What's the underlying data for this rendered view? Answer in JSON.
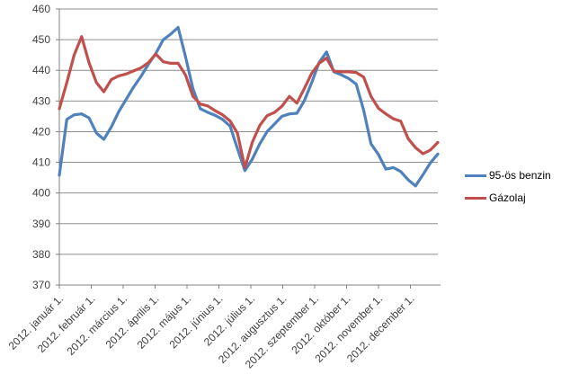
{
  "chart_data": {
    "type": "line",
    "title": "",
    "xlabel": "",
    "ylabel": "",
    "ylim": [
      370,
      460
    ],
    "y_ticks": [
      460,
      450,
      440,
      430,
      420,
      410,
      400,
      390,
      380,
      370
    ],
    "grid": true,
    "legend_position": "right",
    "x_tick_labels": [
      "2012. január 1.",
      "2012. február 1.",
      "2012. március 1.",
      "2012. április 1.",
      "2012. május 1.",
      "2012. június 1.",
      "2012. július 1.",
      "2012. augusztus 1.",
      "2012. szeptember 1.",
      "2012. október 1.",
      "2012. november 1.",
      "2012. december 1."
    ],
    "x_resolution": "weekly, 2012. január 1. – 2012. december 31.",
    "series": [
      {
        "name": "95-ös benzin",
        "color": "#4F81BD",
        "values": [
          405.8,
          424,
          425.5,
          425.8,
          424.5,
          419.5,
          417.5,
          421.5,
          426.5,
          430.5,
          434.5,
          438,
          442,
          445.5,
          450,
          451.8,
          454,
          444.5,
          434,
          427.5,
          426.3,
          425.3,
          424,
          421.8,
          414.5,
          407.3,
          411,
          416,
          420,
          422.5,
          425,
          425.8,
          426,
          430,
          436,
          442.5,
          446,
          439.5,
          438.5,
          437.3,
          435.5,
          427,
          416,
          412.5,
          407.8,
          408.3,
          407,
          404.3,
          402.3,
          406,
          409.8,
          412.7
        ]
      },
      {
        "name": "Gázolaj",
        "color": "#C0504D",
        "values": [
          427.5,
          436,
          445,
          451,
          442.5,
          436,
          433,
          437,
          438.2,
          438.8,
          439.8,
          440.8,
          442.5,
          445.3,
          442.8,
          442.3,
          442.3,
          438.5,
          431.5,
          429,
          428.4,
          426.8,
          425.5,
          423.5,
          419.5,
          408.3,
          416.5,
          422,
          425.2,
          426.3,
          428.3,
          431.5,
          429.3,
          434,
          439,
          442.3,
          444,
          439.7,
          439.5,
          439.5,
          439.3,
          437.8,
          431.5,
          427.6,
          425.8,
          424.2,
          423.4,
          417.7,
          414.8,
          412.8,
          414,
          416.5
        ]
      }
    ],
    "colors": {
      "gridline": "#8e8e8e",
      "axis": "#808080",
      "tick_text": "#404040"
    }
  }
}
